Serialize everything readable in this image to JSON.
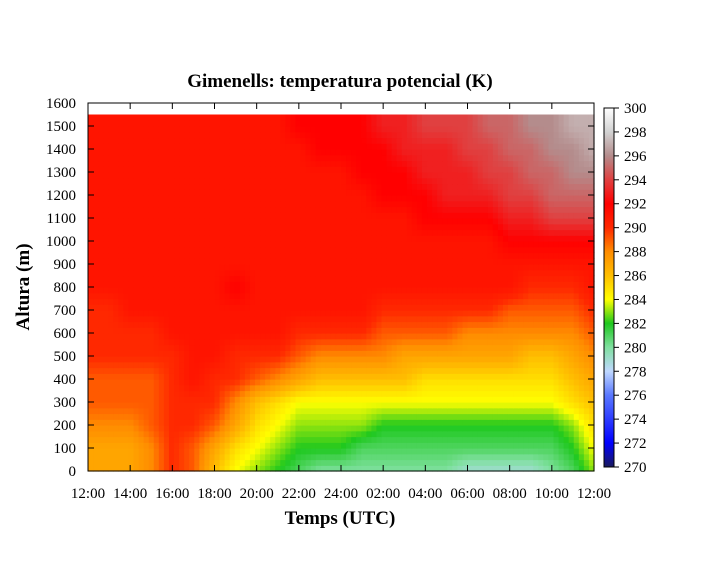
{
  "chart_data": {
    "type": "heatmap",
    "title": "Gimenells: temperatura potencial (K)",
    "xlabel": "Temps (UTC)",
    "ylabel": "Altura (m)",
    "x_ticks": [
      "12:00",
      "14:00",
      "16:00",
      "18:00",
      "20:00",
      "22:00",
      "24:00",
      "02:00",
      "04:00",
      "06:00",
      "08:00",
      "10:00",
      "12:00"
    ],
    "y_ticks": [
      0,
      100,
      200,
      300,
      400,
      500,
      600,
      700,
      800,
      900,
      1000,
      1100,
      1200,
      1300,
      1400,
      1500,
      1600
    ],
    "ylim": [
      0,
      1600
    ],
    "data_top": 1550,
    "x_hours": [
      0,
      1,
      2,
      3,
      4,
      5,
      6,
      7,
      8,
      9,
      10,
      11,
      12,
      13,
      14,
      15,
      16,
      17,
      18,
      19,
      20,
      21,
      22,
      23,
      24
    ],
    "heights": [
      0,
      100,
      200,
      300,
      400,
      500,
      600,
      700,
      800,
      900,
      1000,
      1100,
      1200,
      1300,
      1400,
      1500
    ],
    "values": [
      [
        287,
        287,
        287,
        288,
        290,
        289,
        286,
        284,
        283,
        282,
        281,
        280,
        280,
        280,
        280,
        280,
        280,
        280,
        279,
        279,
        279,
        279,
        280,
        281,
        283
      ],
      [
        287,
        287,
        287,
        288,
        290,
        289,
        287,
        285,
        284,
        283,
        282,
        282,
        282,
        281,
        281,
        281,
        281,
        281,
        281,
        281,
        281,
        281,
        281,
        282,
        284
      ],
      [
        288,
        288,
        288,
        289,
        290,
        290,
        289,
        287,
        285,
        284,
        283,
        283,
        283,
        283,
        282,
        282,
        282,
        282,
        282,
        282,
        282,
        282,
        282,
        283,
        285
      ],
      [
        289,
        289,
        289,
        289,
        290,
        290,
        290,
        288,
        286,
        285,
        284,
        284,
        284,
        284,
        284,
        284,
        284,
        284,
        284,
        284,
        284,
        284,
        284,
        285,
        286
      ],
      [
        289,
        289,
        289,
        289,
        290,
        291,
        290,
        290,
        289,
        288,
        287,
        286,
        286,
        286,
        286,
        286,
        285,
        285,
        285,
        285,
        285,
        285,
        285,
        286,
        287
      ],
      [
        290,
        290,
        290,
        290,
        290,
        291,
        291,
        290,
        290,
        290,
        289,
        288,
        288,
        288,
        288,
        287,
        287,
        287,
        287,
        287,
        287,
        286,
        286,
        287,
        288
      ],
      [
        290,
        290,
        290,
        290,
        291,
        291,
        291,
        291,
        291,
        291,
        290,
        290,
        290,
        290,
        289,
        289,
        289,
        289,
        288,
        288,
        288,
        288,
        288,
        288,
        289
      ],
      [
        290,
        290,
        291,
        291,
        291,
        291,
        291,
        291,
        291,
        291,
        291,
        291,
        291,
        291,
        290,
        290,
        290,
        290,
        290,
        290,
        289,
        289,
        289,
        289,
        290
      ],
      [
        291,
        291,
        291,
        291,
        291,
        291,
        291,
        292,
        291,
        291,
        291,
        291,
        291,
        291,
        291,
        291,
        291,
        291,
        291,
        291,
        291,
        290,
        290,
        290,
        291
      ],
      [
        291,
        291,
        291,
        291,
        291,
        291,
        291,
        291,
        291,
        291,
        291,
        291,
        291,
        291,
        291,
        291,
        291,
        291,
        291,
        291,
        291,
        291,
        291,
        291,
        291
      ],
      [
        291,
        291,
        291,
        291,
        291,
        291,
        291,
        291,
        291,
        291,
        291,
        291,
        291,
        291,
        291,
        291,
        291,
        291,
        291,
        291,
        292,
        292,
        292,
        292,
        292
      ],
      [
        291,
        291,
        291,
        291,
        291,
        291,
        291,
        291,
        291,
        291,
        291,
        291,
        291,
        291,
        291,
        291,
        292,
        292,
        292,
        292,
        293,
        293,
        294,
        294,
        294
      ],
      [
        291,
        291,
        291,
        291,
        291,
        291,
        291,
        291,
        291,
        291,
        291,
        291,
        291,
        291,
        292,
        292,
        292,
        293,
        293,
        293,
        294,
        294,
        295,
        295,
        295
      ],
      [
        291,
        291,
        291,
        291,
        291,
        291,
        291,
        291,
        291,
        291,
        291,
        291,
        291,
        292,
        292,
        292,
        293,
        293,
        293,
        294,
        294,
        295,
        295,
        296,
        296
      ],
      [
        291,
        291,
        291,
        291,
        291,
        291,
        291,
        291,
        291,
        291,
        291,
        292,
        292,
        292,
        292,
        293,
        293,
        293,
        294,
        294,
        295,
        295,
        296,
        296,
        297
      ],
      [
        291,
        291,
        291,
        291,
        291,
        291,
        291,
        291,
        291,
        291,
        292,
        292,
        292,
        292,
        293,
        293,
        294,
        294,
        294,
        295,
        295,
        296,
        296,
        297,
        297
      ]
    ],
    "colorbar": {
      "min": 270,
      "max": 300,
      "ticks": [
        270,
        272,
        274,
        276,
        278,
        280,
        282,
        284,
        286,
        288,
        290,
        292,
        294,
        296,
        298,
        300
      ],
      "stops": [
        {
          "v": 270,
          "color": "#1a1a5c"
        },
        {
          "v": 272,
          "color": "#0000ff"
        },
        {
          "v": 276,
          "color": "#5a78ff"
        },
        {
          "v": 278,
          "color": "#c0d8ff"
        },
        {
          "v": 280,
          "color": "#80e0a0"
        },
        {
          "v": 282,
          "color": "#1ec81e"
        },
        {
          "v": 284,
          "color": "#ffff00"
        },
        {
          "v": 286,
          "color": "#ffbe00"
        },
        {
          "v": 288,
          "color": "#ff8c00"
        },
        {
          "v": 290,
          "color": "#ff2800"
        },
        {
          "v": 292,
          "color": "#ff0000"
        },
        {
          "v": 294,
          "color": "#e04040"
        },
        {
          "v": 296,
          "color": "#b48c8c"
        },
        {
          "v": 298,
          "color": "#d2d2d2"
        },
        {
          "v": 300,
          "color": "#ffffff"
        }
      ]
    },
    "grid": false,
    "legend": "right"
  }
}
